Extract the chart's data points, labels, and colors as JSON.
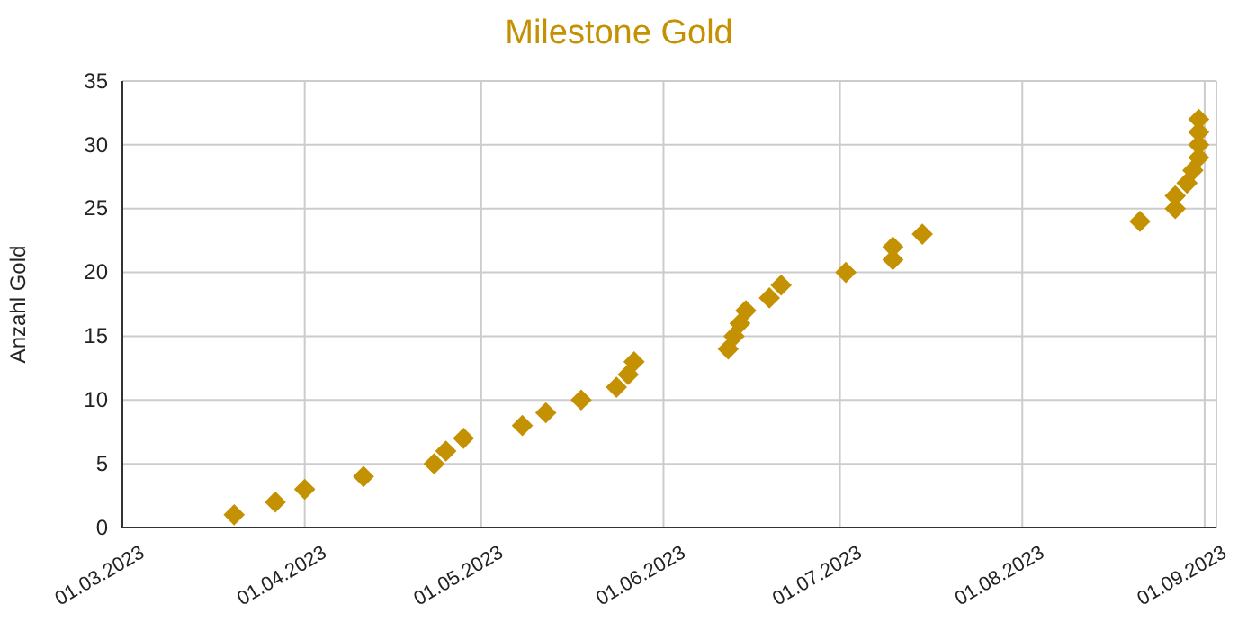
{
  "chart_data": {
    "type": "scatter",
    "title": "Milestone Gold",
    "ylabel": "Anzahl Gold",
    "x": [
      "2023-03-20",
      "2023-03-27",
      "2023-04-01",
      "2023-04-11",
      "2023-04-23",
      "2023-04-25",
      "2023-04-28",
      "2023-05-08",
      "2023-05-12",
      "2023-05-18",
      "2023-05-24",
      "2023-05-26",
      "2023-05-27",
      "2023-06-12",
      "2023-06-13",
      "2023-06-14",
      "2023-06-15",
      "2023-06-19",
      "2023-06-21",
      "2023-07-02",
      "2023-07-10",
      "2023-07-10",
      "2023-07-15",
      "2023-08-21",
      "2023-08-27",
      "2023-08-27",
      "2023-08-29",
      "2023-08-30",
      "2023-08-31",
      "2023-08-31",
      "2023-08-31",
      "2023-08-31"
    ],
    "values": [
      1,
      2,
      3,
      4,
      5,
      6,
      7,
      8,
      9,
      10,
      11,
      12,
      13,
      14,
      15,
      16,
      17,
      18,
      19,
      20,
      21,
      22,
      23,
      24,
      25,
      26,
      27,
      28,
      29,
      30,
      31,
      32
    ],
    "color": "#c49102",
    "marker": "diamond",
    "xlim": [
      "2023-03-01",
      "2023-09-03"
    ],
    "xticks": [
      {
        "value": "2023-03-01",
        "label": "01.03.2023"
      },
      {
        "value": "2023-04-01",
        "label": "01.04.2023"
      },
      {
        "value": "2023-05-01",
        "label": "01.05.2023"
      },
      {
        "value": "2023-06-01",
        "label": "01.06.2023"
      },
      {
        "value": "2023-07-01",
        "label": "01.07.2023"
      },
      {
        "value": "2023-08-01",
        "label": "01.08.2023"
      },
      {
        "value": "2023-09-01",
        "label": "01.09.2023"
      }
    ],
    "ylim": [
      0,
      35
    ],
    "yticks": [
      0,
      5,
      10,
      15,
      20,
      25,
      30,
      35
    ],
    "grid": true
  }
}
